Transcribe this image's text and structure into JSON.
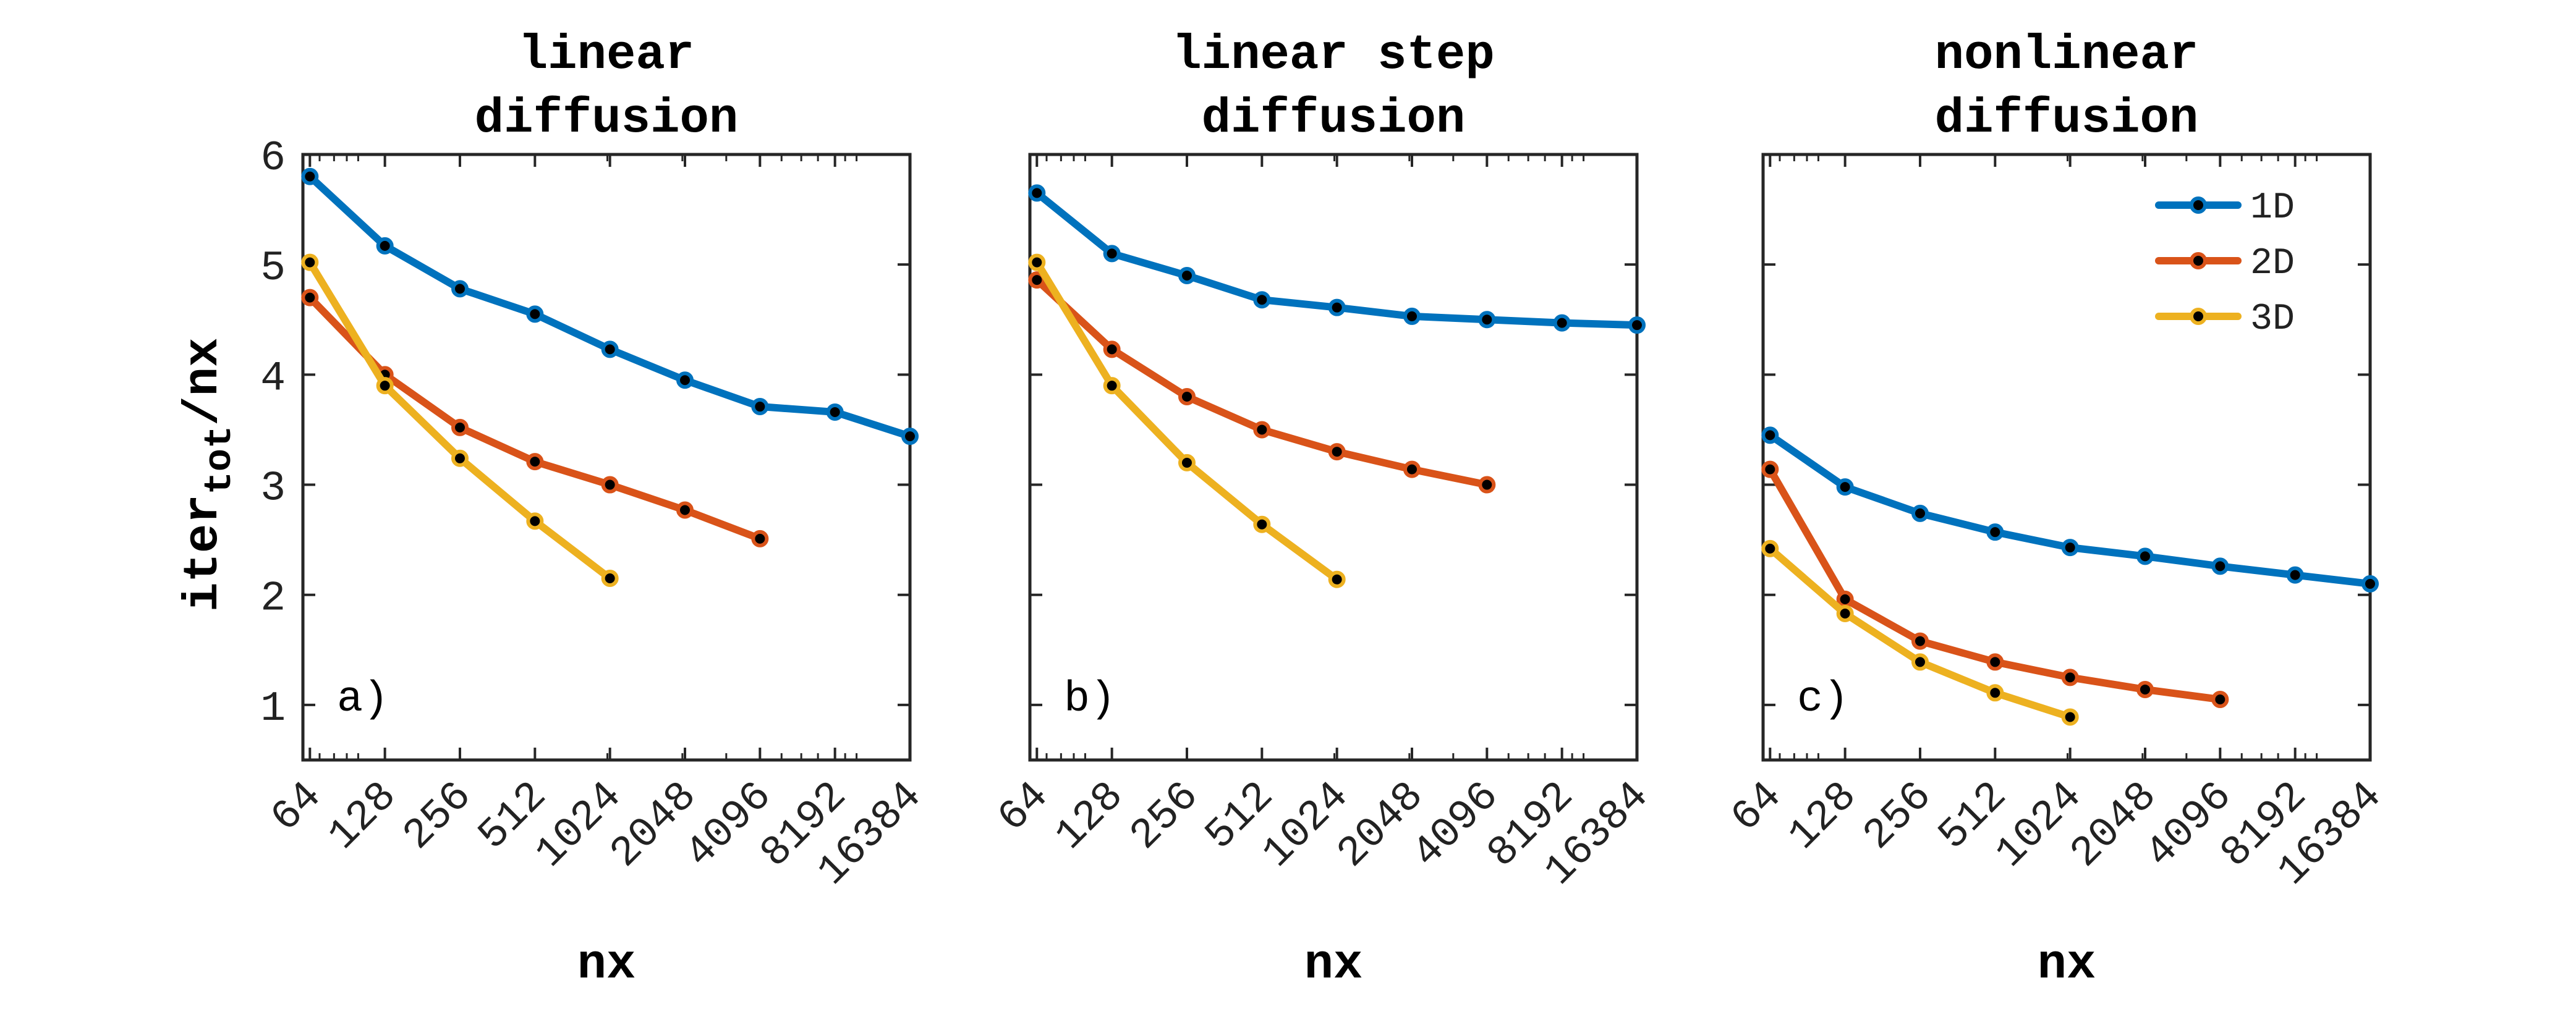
{
  "chart_data": [
    {
      "type": "line",
      "title": [
        "linear",
        "diffusion"
      ],
      "panel_label": "a)",
      "xlabel": "nx",
      "ylabel": "iter_tot/nx",
      "x_scale": "log2",
      "xlim": [
        60,
        16384
      ],
      "ylim": [
        0.5,
        6
      ],
      "yticks": [
        1,
        2,
        3,
        4,
        5,
        6
      ],
      "xticks": [
        64,
        128,
        256,
        512,
        1024,
        2048,
        4096,
        8192,
        16384
      ],
      "grid": false,
      "series": [
        {
          "name": "1D",
          "color": "#0072BD",
          "x": [
            64,
            128,
            256,
            512,
            1024,
            2048,
            4096,
            8192,
            16384
          ],
          "values": [
            5.8,
            5.17,
            4.78,
            4.55,
            4.23,
            3.95,
            3.71,
            3.66,
            3.44
          ]
        },
        {
          "name": "2D",
          "color": "#D95319",
          "x": [
            64,
            128,
            256,
            512,
            1024,
            2048,
            4096
          ],
          "values": [
            4.7,
            4.0,
            3.52,
            3.21,
            3.0,
            2.77,
            2.51
          ]
        },
        {
          "name": "3D",
          "color": "#EDB120",
          "x": [
            64,
            128,
            256,
            512,
            1024
          ],
          "values": [
            5.02,
            3.9,
            3.24,
            2.67,
            2.15
          ]
        }
      ]
    },
    {
      "type": "line",
      "title": [
        "linear step",
        "diffusion"
      ],
      "panel_label": "b)",
      "xlabel": "nx",
      "x_scale": "log2",
      "xlim": [
        60,
        16384
      ],
      "ylim": [
        0.5,
        6
      ],
      "xticks": [
        64,
        128,
        256,
        512,
        1024,
        2048,
        4096,
        8192,
        16384
      ],
      "grid": false,
      "series": [
        {
          "name": "1D",
          "color": "#0072BD",
          "x": [
            64,
            128,
            256,
            512,
            1024,
            2048,
            4096,
            8192,
            16384
          ],
          "values": [
            5.65,
            5.1,
            4.9,
            4.68,
            4.61,
            4.53,
            4.5,
            4.47,
            4.45
          ]
        },
        {
          "name": "2D",
          "color": "#D95319",
          "x": [
            64,
            128,
            256,
            512,
            1024,
            2048,
            4096
          ],
          "values": [
            4.86,
            4.23,
            3.8,
            3.5,
            3.3,
            3.14,
            3.0
          ]
        },
        {
          "name": "3D",
          "color": "#EDB120",
          "x": [
            64,
            128,
            256,
            512,
            1024
          ],
          "values": [
            5.02,
            3.9,
            3.2,
            2.64,
            2.14
          ]
        }
      ]
    },
    {
      "type": "line",
      "title": [
        "nonlinear",
        "diffusion"
      ],
      "panel_label": "c)",
      "xlabel": "nx",
      "x_scale": "log2",
      "xlim": [
        60,
        16384
      ],
      "ylim": [
        0.5,
        6
      ],
      "xticks": [
        64,
        128,
        256,
        512,
        1024,
        2048,
        4096,
        8192,
        16384
      ],
      "grid": false,
      "legend": {
        "position": "top-right",
        "entries": [
          "1D",
          "2D",
          "3D"
        ]
      },
      "series": [
        {
          "name": "1D",
          "color": "#0072BD",
          "x": [
            64,
            128,
            256,
            512,
            1024,
            2048,
            4096,
            8192,
            16384
          ],
          "values": [
            3.45,
            2.98,
            2.74,
            2.57,
            2.43,
            2.35,
            2.26,
            2.18,
            2.1
          ]
        },
        {
          "name": "2D",
          "color": "#D95319",
          "x": [
            64,
            128,
            256,
            512,
            1024,
            2048,
            4096
          ],
          "values": [
            3.14,
            1.96,
            1.58,
            1.39,
            1.25,
            1.14,
            1.05
          ]
        },
        {
          "name": "3D",
          "color": "#EDB120",
          "x": [
            64,
            128,
            256,
            512,
            1024
          ],
          "values": [
            2.42,
            1.83,
            1.39,
            1.11,
            0.89
          ]
        }
      ]
    }
  ],
  "axis_text": {
    "ylabel_main": "iter",
    "ylabel_sub": "tot",
    "ylabel_tail": "/nx"
  }
}
